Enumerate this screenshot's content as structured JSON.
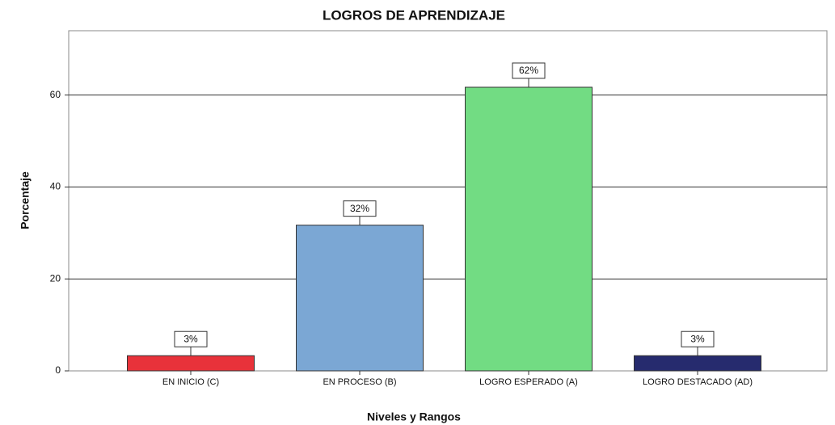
{
  "chart_data": {
    "type": "bar",
    "title": "LOGROS DE APRENDIZAJE",
    "x_label": "Niveles y Rangos",
    "y_label": "Porcentaje",
    "categories": [
      "EN INICIO (C)",
      "EN PROCESO (B)",
      "LOGRO ESPERADO (A)",
      "LOGRO DESTACADO (AD)"
    ],
    "values": [
      3.3,
      31.7,
      61.7,
      3.3
    ],
    "value_labels": [
      "3%",
      "32%",
      "62%",
      "3%"
    ],
    "colors": [
      "#e8323a",
      "#7ba7d4",
      "#72dc83",
      "#262b6e"
    ],
    "ylim": [
      0,
      74
    ],
    "yticks": [
      0,
      20,
      40,
      60
    ],
    "grid": true
  }
}
